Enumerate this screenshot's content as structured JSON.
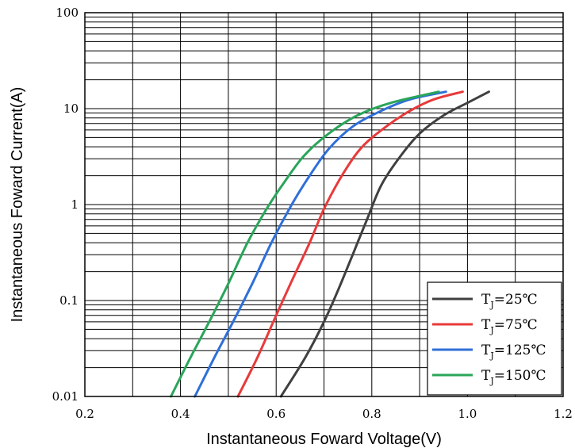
{
  "chart_data": {
    "type": "line",
    "title": "",
    "xlabel": "Instantaneous Foward Voltage(V)",
    "ylabel": "Instantaneous Foward Current(A)",
    "xlim": [
      0.2,
      1.2
    ],
    "ylim": [
      0.01,
      100
    ],
    "yscale": "log",
    "grid": true,
    "legend_position": "bottom-right",
    "x_tick_labels": [
      "0.2",
      "0.4",
      "0.6",
      "0.8",
      "1.0",
      "1.2"
    ],
    "y_tick_labels": [
      "0.01",
      "0.1",
      "1",
      "10",
      "100"
    ],
    "legend_prefix": "T",
    "legend_subscript": "J",
    "series": [
      {
        "name": "T_J=25℃",
        "label_value": "=25℃",
        "color": "#404040",
        "points": [
          [
            0.61,
            0.01
          ],
          [
            0.66,
            0.025
          ],
          [
            0.7,
            0.06
          ],
          [
            0.73,
            0.13
          ],
          [
            0.76,
            0.3
          ],
          [
            0.79,
            0.7
          ],
          [
            0.82,
            1.6
          ],
          [
            0.86,
            3.2
          ],
          [
            0.9,
            5.5
          ],
          [
            0.95,
            8.5
          ],
          [
            1.0,
            11.5
          ],
          [
            1.045,
            15
          ]
        ]
      },
      {
        "name": "T_J=75℃",
        "label_value": "=75℃",
        "color": "#e83a3a",
        "points": [
          [
            0.52,
            0.01
          ],
          [
            0.56,
            0.025
          ],
          [
            0.6,
            0.07
          ],
          [
            0.63,
            0.15
          ],
          [
            0.67,
            0.4
          ],
          [
            0.7,
            0.9
          ],
          [
            0.74,
            2.1
          ],
          [
            0.78,
            4.0
          ],
          [
            0.83,
            6.5
          ],
          [
            0.88,
            9.5
          ],
          [
            0.93,
            12.5
          ],
          [
            0.99,
            15
          ]
        ]
      },
      {
        "name": "T_J=125℃",
        "label_value": "=125℃",
        "color": "#2f6fd8",
        "points": [
          [
            0.43,
            0.01
          ],
          [
            0.47,
            0.025
          ],
          [
            0.51,
            0.06
          ],
          [
            0.55,
            0.15
          ],
          [
            0.59,
            0.4
          ],
          [
            0.63,
            0.95
          ],
          [
            0.67,
            2.0
          ],
          [
            0.71,
            3.8
          ],
          [
            0.76,
            6.5
          ],
          [
            0.82,
            9.5
          ],
          [
            0.88,
            12.5
          ],
          [
            0.955,
            15
          ]
        ]
      },
      {
        "name": "T_J=150℃",
        "label_value": "=150℃",
        "color": "#2aa55a",
        "points": [
          [
            0.38,
            0.01
          ],
          [
            0.42,
            0.025
          ],
          [
            0.46,
            0.06
          ],
          [
            0.5,
            0.15
          ],
          [
            0.54,
            0.4
          ],
          [
            0.58,
            0.9
          ],
          [
            0.62,
            1.8
          ],
          [
            0.66,
            3.3
          ],
          [
            0.71,
            5.5
          ],
          [
            0.77,
            8.5
          ],
          [
            0.84,
            11.5
          ],
          [
            0.94,
            15
          ]
        ]
      }
    ]
  }
}
